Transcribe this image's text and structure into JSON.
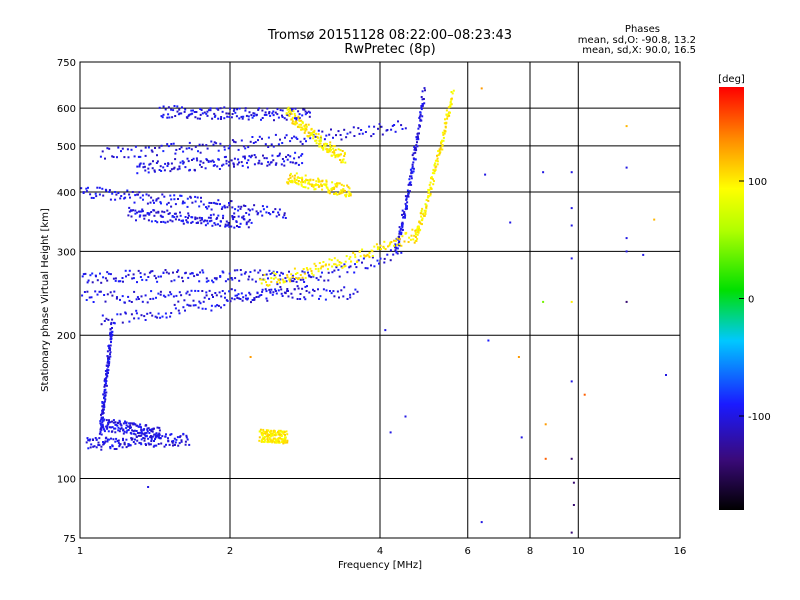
{
  "header": {
    "title": "Tromsø 20151128 08:22:00–08:23:43",
    "subtitle": "RwPretec (8p)",
    "stats_title": "Phases",
    "stats_o": "mean, sd,O: -90.8, 13.2",
    "stats_x": "mean, sd,X: 90.0, 16.5"
  },
  "chart_data": {
    "type": "scatter",
    "xlabel": "Frequency [MHz]",
    "ylabel": "Stationary phase Virtual Height [km]",
    "xscale": "log",
    "yscale": "log",
    "xlim": [
      1,
      16
    ],
    "ylim": [
      75,
      750
    ],
    "x_ticks": [
      1,
      2,
      4,
      6,
      8,
      10,
      16
    ],
    "x_tick_labels": [
      "1",
      "2",
      "4",
      "6",
      "8",
      "10",
      "16"
    ],
    "y_ticks": [
      75,
      100,
      200,
      300,
      400,
      500,
      600,
      750
    ],
    "y_tick_labels": [
      "75",
      "100",
      "200",
      "300",
      "400",
      "500",
      "600",
      "750"
    ],
    "grid": true,
    "colorbar": {
      "label": "[deg]",
      "range": [
        -180,
        180
      ],
      "ticks": [
        100,
        0,
        -100
      ],
      "tick_labels": [
        "100",
        "0",
        "-100"
      ]
    },
    "traces": [
      {
        "name": "O low trace",
        "phase": -100,
        "x_range": [
          1.03,
          1.65
        ],
        "y_start": 118,
        "y_end": 121,
        "curve": -0.05
      },
      {
        "name": "O E region scatter",
        "phase": -100,
        "x_range": [
          1.1,
          1.45
        ],
        "y_start": 130,
        "y_end": 125,
        "curve": 0.05
      },
      {
        "name": "O vertical spread",
        "phase": -100,
        "x_range": [
          1.1,
          1.16
        ],
        "y_start": 125,
        "y_end": 210,
        "curve": 0.0
      },
      {
        "name": "O F lower trace",
        "phase": -100,
        "x_range": [
          1.1,
          4.4
        ],
        "y_start": 215,
        "y_end": 300,
        "curve": -0.6
      },
      {
        "name": "O F spread band",
        "phase": -100,
        "x_range": [
          1.0,
          3.6
        ],
        "y_start": 240,
        "y_end": 245,
        "curve": 0.05
      },
      {
        "name": "O F upper spread",
        "phase": -100,
        "x_range": [
          1.0,
          2.9
        ],
        "y_start": 265,
        "y_end": 265,
        "curve": 0.1
      },
      {
        "name": "O second-hop band",
        "phase": -100,
        "x_range": [
          1.0,
          2.6
        ],
        "y_start": 400,
        "y_end": 360,
        "curve": -0.2
      },
      {
        "name": "O second-hop mid",
        "phase": -100,
        "x_range": [
          1.25,
          2.2
        ],
        "y_start": 360,
        "y_end": 345,
        "curve": 0.1
      },
      {
        "name": "O high band",
        "phase": -100,
        "x_range": [
          1.1,
          4.5
        ],
        "y_start": 480,
        "y_end": 550,
        "curve": -0.4
      },
      {
        "name": "O high band lower",
        "phase": -100,
        "x_range": [
          1.3,
          2.8
        ],
        "y_start": 450,
        "y_end": 470,
        "curve": 0.1
      },
      {
        "name": "O top band",
        "phase": -100,
        "x_range": [
          1.45,
          2.9
        ],
        "y_start": 590,
        "y_end": 580,
        "curve": 0.05
      },
      {
        "name": "O F2 vertical",
        "phase": -100,
        "x_range": [
          4.3,
          4.9
        ],
        "y_start": 300,
        "y_end": 650,
        "curve": -0.3
      },
      {
        "name": "X low trace",
        "phase": 100,
        "x_range": [
          2.3,
          2.6
        ],
        "y_start": 123,
        "y_end": 122,
        "curve": 0.0
      },
      {
        "name": "X F lower trace",
        "phase": 100,
        "x_range": [
          2.3,
          4.8
        ],
        "y_start": 260,
        "y_end": 330,
        "curve": -0.5
      },
      {
        "name": "X F vertical",
        "phase": 100,
        "x_range": [
          4.7,
          5.6
        ],
        "y_start": 320,
        "y_end": 650,
        "curve": -0.3
      },
      {
        "name": "X high arc",
        "phase": 100,
        "x_range": [
          2.6,
          3.4
        ],
        "y_start": 590,
        "y_end": 470,
        "curve": 0.2
      },
      {
        "name": "X second-hop arc",
        "phase": 100,
        "x_range": [
          2.6,
          3.5
        ],
        "y_start": 430,
        "y_end": 400,
        "curve": 0.05
      }
    ],
    "sparse_points": [
      {
        "x": 6.4,
        "y": 660,
        "phase": 130
      },
      {
        "x": 6.5,
        "y": 435,
        "phase": -100
      },
      {
        "x": 7.3,
        "y": 345,
        "phase": -100
      },
      {
        "x": 8.5,
        "y": 440,
        "phase": -100
      },
      {
        "x": 9.7,
        "y": 440,
        "phase": -100
      },
      {
        "x": 9.7,
        "y": 370,
        "phase": -100
      },
      {
        "x": 9.7,
        "y": 340,
        "phase": -100
      },
      {
        "x": 9.7,
        "y": 290,
        "phase": -100
      },
      {
        "x": 8.5,
        "y": 235,
        "phase": 40
      },
      {
        "x": 9.7,
        "y": 235,
        "phase": 100
      },
      {
        "x": 12.5,
        "y": 550,
        "phase": 120
      },
      {
        "x": 12.5,
        "y": 450,
        "phase": -100
      },
      {
        "x": 12.5,
        "y": 320,
        "phase": -100
      },
      {
        "x": 12.5,
        "y": 300,
        "phase": -100
      },
      {
        "x": 13.5,
        "y": 295,
        "phase": -100
      },
      {
        "x": 14.2,
        "y": 350,
        "phase": 120
      },
      {
        "x": 12.5,
        "y": 235,
        "phase": -140
      },
      {
        "x": 6.6,
        "y": 195,
        "phase": -90
      },
      {
        "x": 7.6,
        "y": 180,
        "phase": 130
      },
      {
        "x": 9.7,
        "y": 160,
        "phase": -100
      },
      {
        "x": 10.3,
        "y": 150,
        "phase": 150
      },
      {
        "x": 15,
        "y": 165,
        "phase": -100
      },
      {
        "x": 4.5,
        "y": 135,
        "phase": -100
      },
      {
        "x": 4.2,
        "y": 125,
        "phase": -100
      },
      {
        "x": 7.7,
        "y": 122,
        "phase": -100
      },
      {
        "x": 8.6,
        "y": 130,
        "phase": 130
      },
      {
        "x": 8.6,
        "y": 110,
        "phase": 150
      },
      {
        "x": 9.7,
        "y": 110,
        "phase": -140
      },
      {
        "x": 9.8,
        "y": 98,
        "phase": -140
      },
      {
        "x": 9.8,
        "y": 88,
        "phase": -140
      },
      {
        "x": 9.7,
        "y": 77,
        "phase": -140
      },
      {
        "x": 6.4,
        "y": 81,
        "phase": -100
      },
      {
        "x": 1.37,
        "y": 96,
        "phase": -100
      },
      {
        "x": 4.1,
        "y": 205,
        "phase": -100
      },
      {
        "x": 2.2,
        "y": 180,
        "phase": 130
      }
    ]
  },
  "colors": {
    "background": "#ffffff",
    "axes": "#000000"
  }
}
